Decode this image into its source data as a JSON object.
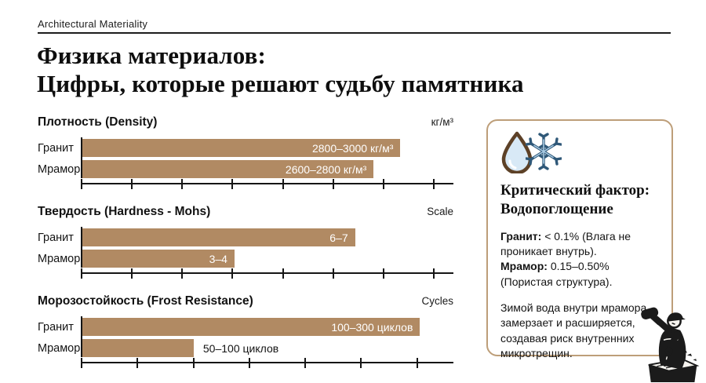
{
  "header": {
    "eyebrow": "Architectural Materiality",
    "title_line1": "Физика материалов:",
    "title_line2": "Цифры, которые решают судьбу памятника"
  },
  "colors": {
    "bar": "#b18a63",
    "panel-border": "#bd9e79",
    "ink": "#161616",
    "bar-label": "#ffffff",
    "drop-outline": "#5d4127",
    "drop-fill": "#d8e9f6",
    "snowflake-dark": "#2f5878",
    "snowflake-light": "#a9cbe4"
  },
  "chart_data": [
    {
      "type": "bar",
      "title": "Плотность (Density)",
      "unit": "кг/м³",
      "categories": [
        "Гранит",
        "Мрамор"
      ],
      "series": [
        {
          "name": "Гранит",
          "range": [
            2800,
            3000
          ],
          "unit": "кг/м³"
        },
        {
          "name": "Мрамор",
          "range": [
            2600,
            2800
          ],
          "unit": "кг/м³"
        }
      ],
      "bar_labels": [
        "2800–3000 кг/м³",
        "2600–2800 кг/м³"
      ],
      "bar_widths_pct": [
        85.7,
        78.5
      ],
      "tick_count": 8,
      "tick_spacing_pct": 13.5,
      "legend": "none",
      "grid": "off"
    },
    {
      "type": "bar",
      "title": "Твердость (Hardness - Mohs)",
      "unit": "Scale",
      "categories": [
        "Гранит",
        "Мрамор"
      ],
      "series": [
        {
          "name": "Гранит",
          "range": [
            6,
            7
          ],
          "unit": "Mohs"
        },
        {
          "name": "Мрамор",
          "range": [
            3,
            4
          ],
          "unit": "Mohs"
        }
      ],
      "bar_labels": [
        "6–7",
        "3–4"
      ],
      "bar_widths_pct": [
        73.5,
        41
      ],
      "tick_count": 8,
      "tick_spacing_pct": 13.5,
      "legend": "none",
      "grid": "off"
    },
    {
      "type": "bar",
      "title": "Морозостойкость (Frost Resistance)",
      "unit": "Cycles",
      "categories": [
        "Гранит",
        "Мрамор"
      ],
      "series": [
        {
          "name": "Гранит",
          "range": [
            100,
            300
          ],
          "unit": "циклов"
        },
        {
          "name": "Мрамор",
          "range": [
            50,
            100
          ],
          "unit": "циклов"
        }
      ],
      "bar_labels": [
        "100–300 циклов",
        "50–100 циклов"
      ],
      "bar_widths_pct": [
        91,
        30
      ],
      "tick_count": 7,
      "tick_spacing_pct": 15,
      "legend": "none",
      "grid": "off"
    }
  ],
  "panel": {
    "heading_line1": "Критический фактор:",
    "heading_line2": "Водопоглощение",
    "items": [
      {
        "term": "Гранит:",
        "text": " < 0.1% (Влага не проникает внутрь)."
      },
      {
        "term": "Мрамор:",
        "text": " 0.15–0.50% (Пористая структура)."
      }
    ],
    "note": "Зимой вода внутри мрамора замерзает и расширяется, создавая риск внутренних микротрещин."
  }
}
